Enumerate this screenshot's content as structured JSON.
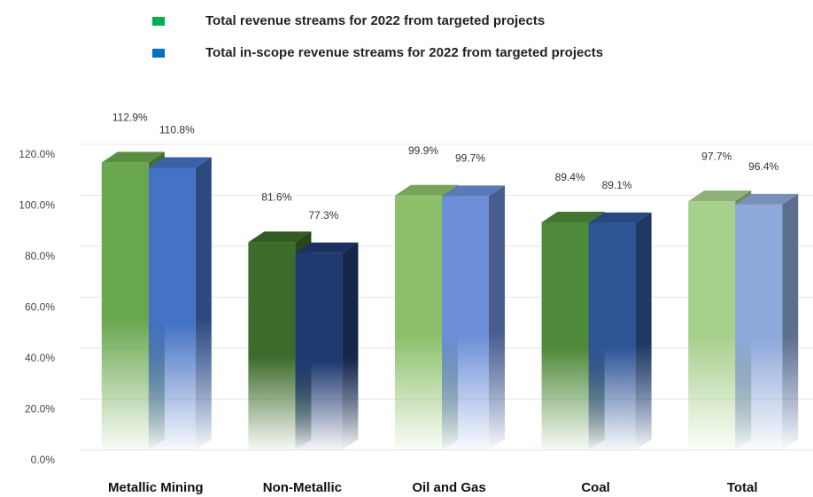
{
  "chart_data": {
    "type": "bar3d",
    "categories": [
      "Metallic Mining",
      "Non-Metallic",
      "Oil and Gas",
      "Coal",
      "Total"
    ],
    "series": [
      {
        "name": "Total revenue streams for 2022 from targeted projects",
        "color": "#00b050",
        "colors": [
          "#6aa84f",
          "#3d6b2a",
          "#8cc06a",
          "#4f8a3a",
          "#a8d08d"
        ],
        "values": [
          112.9,
          81.6,
          99.9,
          89.4,
          97.7
        ],
        "value_labels": [
          "112.9%",
          "81.6%",
          "99.9%",
          "89.4%",
          "97.7%"
        ]
      },
      {
        "name": "Total in-scope revenue streams for 2022 from targeted projects",
        "color": "#0070c0",
        "colors": [
          "#4472c4",
          "#1f3a70",
          "#6d8fd8",
          "#2f5597",
          "#8eaadb"
        ],
        "values": [
          110.8,
          77.3,
          99.7,
          89.1,
          96.4
        ],
        "value_labels": [
          "110.8%",
          "77.3%",
          "99.7%",
          "89.1%",
          "96.4%"
        ]
      }
    ],
    "ylim": [
      0,
      120
    ],
    "yticks": [
      {
        "value": 0,
        "label": "0.0%"
      },
      {
        "value": 20,
        "label": "20.0%"
      },
      {
        "value": 40,
        "label": "40.0%"
      },
      {
        "value": 60,
        "label": "60.0%"
      },
      {
        "value": 80,
        "label": "80.0%"
      },
      {
        "value": 100,
        "label": "100.0%"
      },
      {
        "value": 120,
        "label": "120.0%"
      }
    ],
    "grid": true
  }
}
